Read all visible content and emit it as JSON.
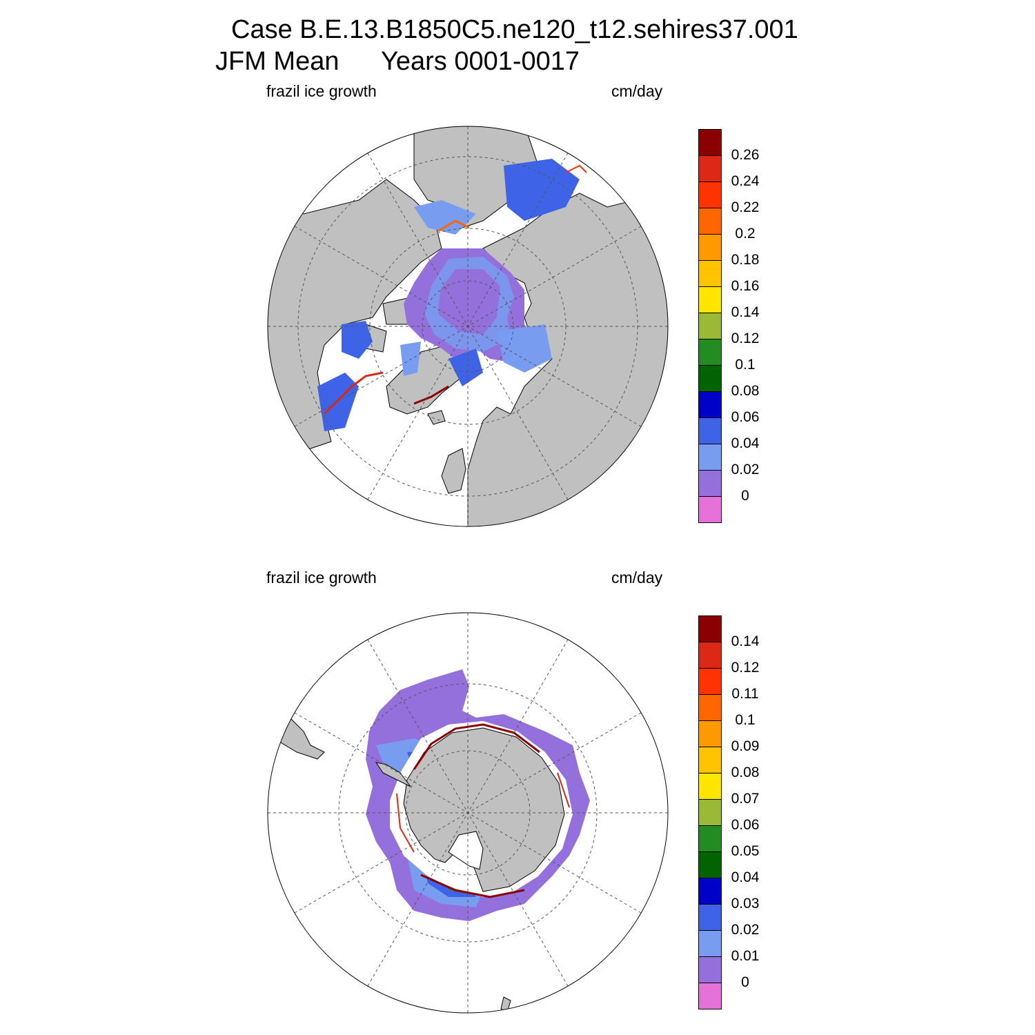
{
  "title": {
    "line1": "Case B.E.13.B1850C5.ne120_t12.sehires37.001",
    "season": "JFM Mean",
    "years": "Years 0001-0017"
  },
  "panels": [
    {
      "id": "north",
      "hemisphere": "Northern Hemisphere (north polar stereographic)",
      "variable_label": "frazil ice growth",
      "units_label": "cm/day",
      "colorbar": {
        "colors": [
          "#e571d9",
          "#9370db",
          "#789cf0",
          "#3e63e6",
          "#0000c8",
          "#006400",
          "#228b22",
          "#9aba36",
          "#ffe600",
          "#ffc300",
          "#ff9900",
          "#ff6600",
          "#ff3300",
          "#dc2814",
          "#8b0000"
        ],
        "labels": [
          "0",
          "0.02",
          "0.04",
          "0.06",
          "0.08",
          "0.1",
          "0.12",
          "0.14",
          "0.16",
          "0.18",
          "0.2",
          "0.22",
          "0.24",
          "0.26"
        ]
      }
    },
    {
      "id": "south",
      "hemisphere": "Southern Hemisphere (south polar stereographic)",
      "variable_label": "frazil ice growth",
      "units_label": "cm/day",
      "colorbar": {
        "colors": [
          "#e571d9",
          "#9370db",
          "#789cf0",
          "#3e63e6",
          "#0000c8",
          "#006400",
          "#228b22",
          "#9aba36",
          "#ffe600",
          "#ffc300",
          "#ff9900",
          "#ff6600",
          "#ff3300",
          "#dc2814",
          "#8b0000"
        ],
        "labels": [
          "0",
          "0.01",
          "0.02",
          "0.03",
          "0.04",
          "0.05",
          "0.06",
          "0.07",
          "0.08",
          "0.09",
          "0.1",
          "0.11",
          "0.12",
          "0.14"
        ]
      }
    }
  ],
  "map_colors": {
    "land": "#c0c0c0",
    "ocean": "#ffffff",
    "ice_base": "#9370db",
    "ice_light": "#789cf0",
    "ice_mid": "#3e63e6"
  }
}
